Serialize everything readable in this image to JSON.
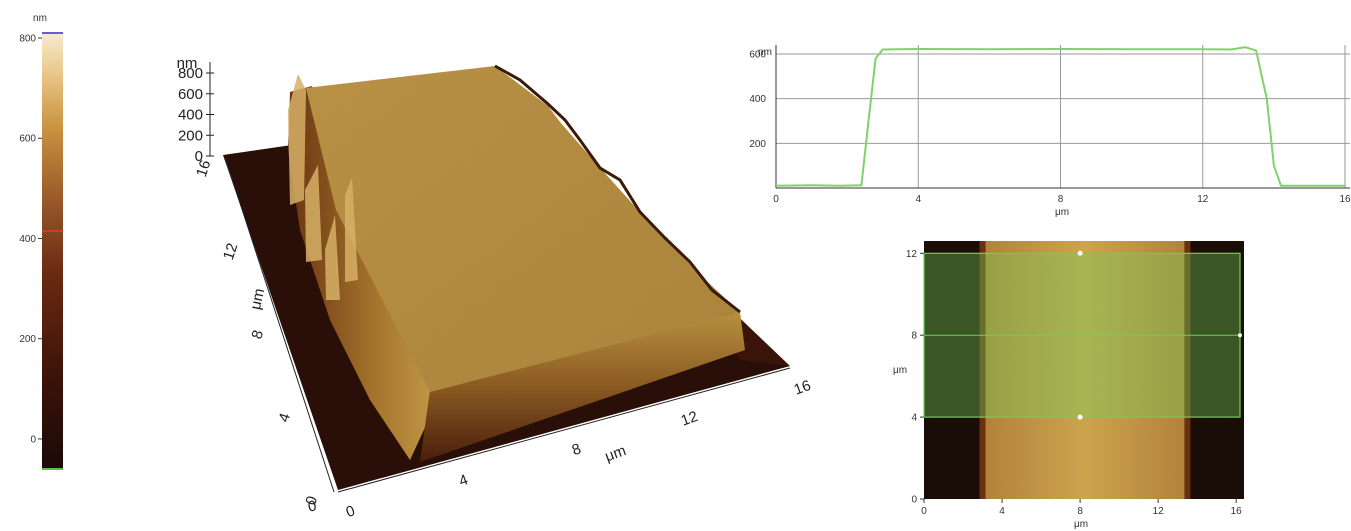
{
  "colorbar": {
    "unit": "nm",
    "ticks": [
      "800",
      "600",
      "400",
      "200",
      "0"
    ],
    "tick_values": [
      800,
      600,
      400,
      200,
      0
    ],
    "range": [
      -60,
      810
    ],
    "marker_value": 415,
    "colors": {
      "gradient": [
        "#1a0a08",
        "#3a1208",
        "#6b2a12",
        "#9a5a2a",
        "#c8923e",
        "#e8c484",
        "#f5ecd0"
      ],
      "marker": "#e04020",
      "top_edge": "#6b5bd6",
      "bottom_edge": "#5fbf4a"
    }
  },
  "surface3d": {
    "z_unit": "nm",
    "z_ticks": [
      "800",
      "600",
      "400",
      "200",
      "0"
    ],
    "x_unit": "μm",
    "x_ticks": [
      "0",
      "4",
      "8",
      "12",
      "16"
    ],
    "y_unit": "μm",
    "y_ticks": [
      "0",
      "4",
      "8",
      "12",
      "16"
    ],
    "colors": {
      "plateau": "#b38a3c",
      "ground": "#2a0e08",
      "wall_dark": "#5a2a10"
    }
  },
  "profile": {
    "y_unit": "nm",
    "x_unit": "μm",
    "x_ticks": [
      "0",
      "4",
      "8",
      "12",
      "16"
    ],
    "y_ticks": [
      "200",
      "400",
      "600"
    ],
    "line_color": "#7fd36a"
  },
  "topview": {
    "y_unit": "μm",
    "x_unit": "μm",
    "x_ticks": [
      "0",
      "4",
      "8",
      "12",
      "16"
    ],
    "y_ticks": [
      "0",
      "4",
      "8",
      "12"
    ],
    "selection_y_range": [
      4,
      12
    ],
    "colors": {
      "dark": "#1a0c06",
      "stripe": "#c89a3a",
      "overlay": "#6fcf5a"
    }
  },
  "chart_data": [
    {
      "type": "line",
      "title": "",
      "xlabel": "μm",
      "ylabel": "nm",
      "xlim": [
        0,
        16
      ],
      "ylim": [
        0,
        640
      ],
      "grid": true,
      "x": [
        0,
        1,
        1.8,
        2.4,
        2.6,
        2.8,
        3.0,
        4,
        6,
        8,
        10,
        12,
        12.8,
        13.2,
        13.5,
        13.8,
        14.0,
        14.2,
        15,
        16
      ],
      "y": [
        10,
        12,
        10,
        12,
        300,
        580,
        620,
        622,
        621,
        622,
        621,
        621,
        620,
        630,
        615,
        400,
        100,
        10,
        10,
        10
      ]
    },
    {
      "type": "heatmap",
      "title": "",
      "xlabel": "μm",
      "ylabel": "μm",
      "xlim": [
        0,
        16.4
      ],
      "ylim": [
        0,
        12.6
      ],
      "z_unit": "nm",
      "stripe_x_range": [
        3.0,
        13.5
      ],
      "plateau_height": 620,
      "base_height": 0
    },
    {
      "type": "surface",
      "title": "",
      "xlabel": "μm",
      "ylabel": "μm",
      "zlabel": "nm",
      "xlim": [
        0,
        16
      ],
      "ylim": [
        0,
        16
      ],
      "zlim": [
        0,
        800
      ],
      "stripe_x_range": [
        3.0,
        13.5
      ],
      "plateau_height": 620
    }
  ]
}
